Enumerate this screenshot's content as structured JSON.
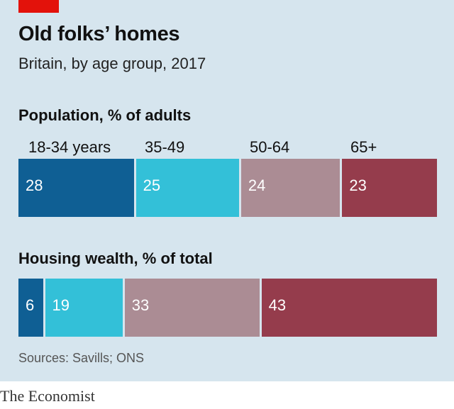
{
  "header": {
    "title": "Old folks’ homes",
    "subtitle": "Britain, by age group, 2017"
  },
  "source": "Sources: Savills; ONS",
  "brand": "The Economist",
  "colors": {
    "background": "#d6e5ee",
    "tag": "#e3120b",
    "segments": [
      "#0f5f94",
      "#33c0d8",
      "#ab8c94",
      "#953c4c"
    ]
  },
  "chart_data": {
    "type": "bar",
    "orientation": "horizontal-stacked",
    "categories": [
      "18-34 years",
      "35-49",
      "50-64",
      "65+"
    ],
    "series": [
      {
        "name": "Population, % of adults",
        "values": [
          28,
          25,
          24,
          23
        ]
      },
      {
        "name": "Housing wealth, % of total",
        "values": [
          6,
          19,
          33,
          43
        ]
      }
    ]
  }
}
